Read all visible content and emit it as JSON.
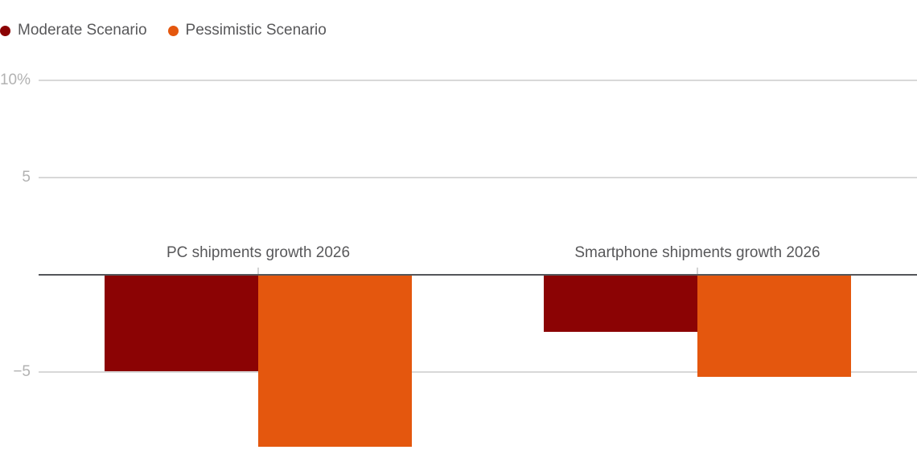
{
  "chart_data": {
    "type": "bar",
    "categories": [
      "PC shipments growth 2026",
      "Smartphone shipments growth 2026"
    ],
    "series": [
      {
        "name": "Moderate Scenario",
        "color": "#8B0304",
        "values": [
          -4.9,
          -2.9
        ]
      },
      {
        "name": "Pessimistic Scenario",
        "color": "#E4570E",
        "values": [
          -8.8,
          -5.2
        ]
      }
    ],
    "unit": "%",
    "y_ticks": [
      {
        "value": 10,
        "label": "10%"
      },
      {
        "value": 5,
        "label": "5"
      },
      {
        "value": -5,
        "label": "−5"
      }
    ],
    "ylim": [
      -9.4,
      10.8
    ],
    "baseline": 0,
    "grid": true,
    "legend_position": "top-left"
  },
  "colors": {
    "background": "#FFFFFF",
    "gridline": "#D8D8D8",
    "axis_line": "#54565A",
    "tick_label": "#B2B2B2",
    "category_label": "#58585A"
  }
}
